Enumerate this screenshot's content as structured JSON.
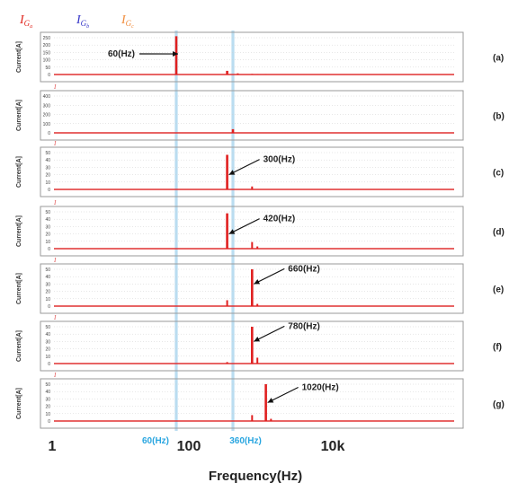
{
  "legend": [
    {
      "main": "I",
      "sub": "G",
      "subsub": "a",
      "color": "#e0241c"
    },
    {
      "main": "I",
      "sub": "G",
      "subsub": "b",
      "color": "#3535c8"
    },
    {
      "main": "I",
      "sub": "G",
      "subsub": "c",
      "color": "#f08c3c"
    }
  ],
  "colors": {
    "bar": "#e02020",
    "baseline": "#e03030",
    "highlight": "#a9d4ee",
    "highlight_label": "#2aa6e0"
  },
  "x_axis": {
    "label": "Frequency(Hz)",
    "scale": "log",
    "tick_labels": [
      {
        "value": 1,
        "text": "1"
      },
      {
        "value": 100,
        "text": "100"
      },
      {
        "value": 10000,
        "text": "10k"
      }
    ],
    "highlight_labels": [
      {
        "value": 60,
        "text": "60(Hz)"
      },
      {
        "value": 360,
        "text": "360(Hz)"
      }
    ]
  },
  "chart_data": [
    {
      "type": "bar",
      "panel": "(a)",
      "sublabel": "",
      "ylabel": "Current[A]",
      "yticks": [
        "250",
        "200",
        "150",
        "100",
        "50",
        "0"
      ],
      "ylim": [
        0,
        250
      ],
      "x": [
        60,
        300,
        420,
        660,
        780,
        1020
      ],
      "values": [
        260,
        25,
        8,
        4,
        2,
        1
      ],
      "annotation": {
        "text": "60(Hz)",
        "x": 60,
        "y": 140
      }
    },
    {
      "type": "bar",
      "panel": "(b)",
      "sublabel": "",
      "ylabel": "Current[A]",
      "yticks": [
        "400",
        "300",
        "200",
        "100",
        "0"
      ],
      "ylim": [
        0,
        400
      ],
      "x": [
        360
      ],
      "values": [
        40
      ],
      "annotation": null
    },
    {
      "type": "bar",
      "panel": "(c)",
      "sublabel": "",
      "ylabel": "Current[A]",
      "yticks": [
        "50",
        "40",
        "30",
        "20",
        "10",
        "0"
      ],
      "ylim": [
        0,
        50
      ],
      "x": [
        300,
        660
      ],
      "values": [
        47,
        4
      ],
      "annotation": {
        "text": "300(Hz)",
        "x": 300,
        "y": 20
      }
    },
    {
      "type": "bar",
      "panel": "(d)",
      "sublabel": "",
      "ylabel": "Current[A]",
      "yticks": [
        "50",
        "40",
        "30",
        "20",
        "10",
        "0"
      ],
      "ylim": [
        0,
        50
      ],
      "x": [
        300,
        660,
        780
      ],
      "values": [
        48,
        9,
        3
      ],
      "annotation": {
        "text": "420(Hz)",
        "x": 300,
        "y": 20
      }
    },
    {
      "type": "bar",
      "panel": "(e)",
      "sublabel": "",
      "ylabel": "Current[A]",
      "yticks": [
        "50",
        "40",
        "30",
        "20",
        "10",
        "0"
      ],
      "ylim": [
        0,
        50
      ],
      "x": [
        300,
        660,
        780
      ],
      "values": [
        8,
        50,
        3
      ],
      "annotation": {
        "text": "660(Hz)",
        "x": 660,
        "y": 30
      }
    },
    {
      "type": "bar",
      "panel": "(f)",
      "sublabel": "",
      "ylabel": "Current[A]",
      "yticks": [
        "50",
        "40",
        "30",
        "20",
        "10",
        "0"
      ],
      "ylim": [
        0,
        50
      ],
      "x": [
        300,
        660,
        780
      ],
      "values": [
        2,
        50,
        8
      ],
      "annotation": {
        "text": "780(Hz)",
        "x": 660,
        "y": 30
      }
    },
    {
      "type": "bar",
      "panel": "(g)",
      "sublabel": "",
      "ylabel": "Current[A]",
      "yticks": [
        "50",
        "40",
        "30",
        "20",
        "10",
        "0"
      ],
      "ylim": [
        0,
        50
      ],
      "x": [
        660,
        1020,
        1200
      ],
      "values": [
        8,
        50,
        3
      ],
      "annotation": {
        "text": "1020(Hz)",
        "x": 1020,
        "y": 25
      }
    }
  ]
}
